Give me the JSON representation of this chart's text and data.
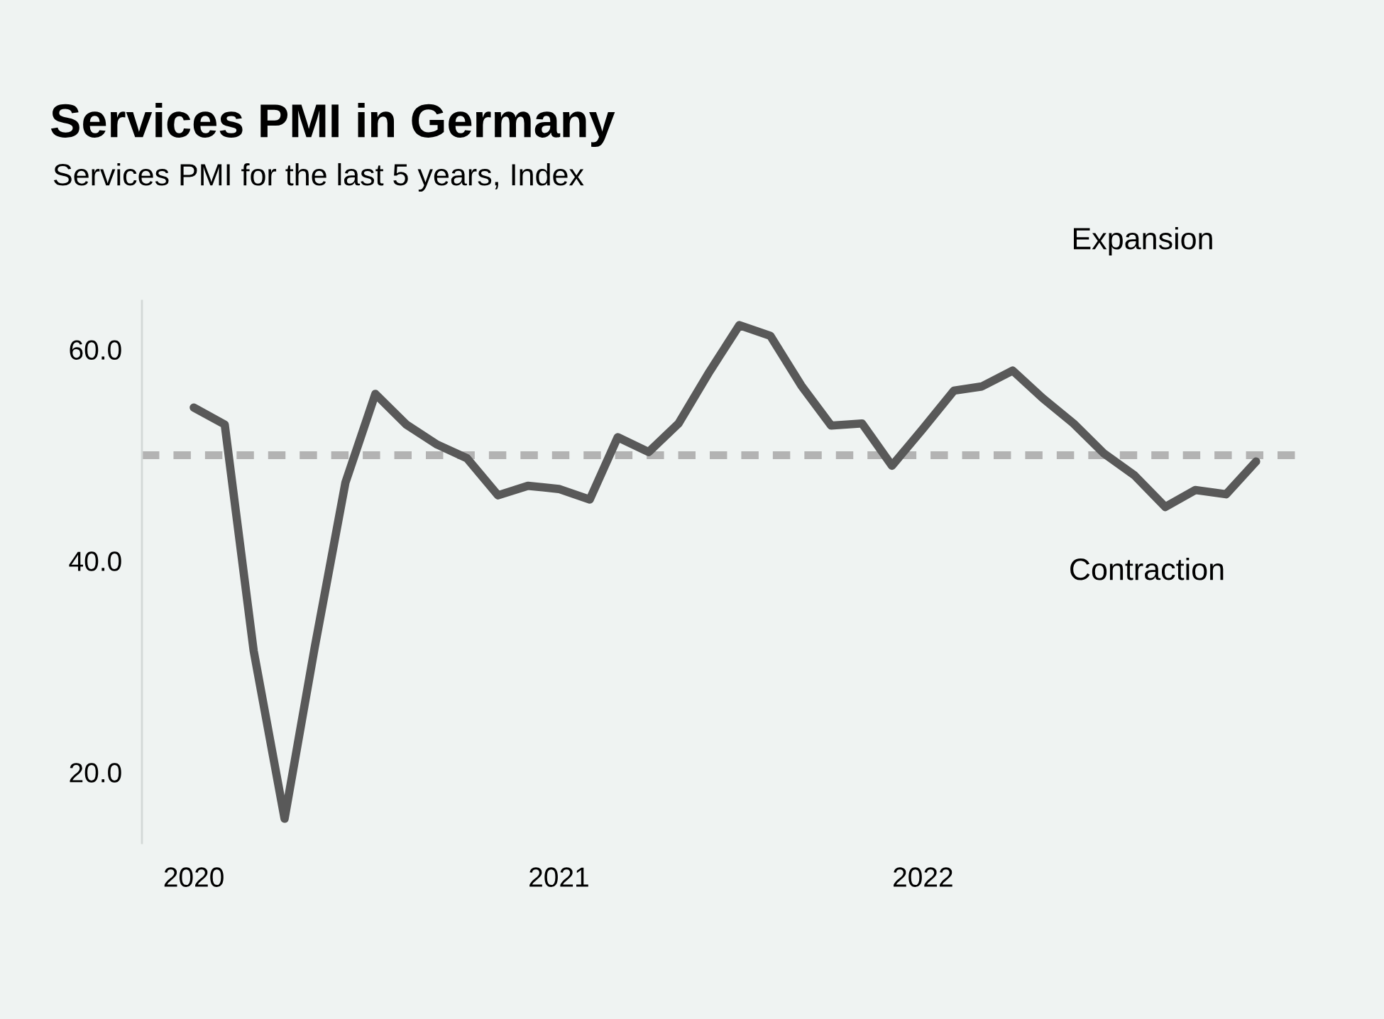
{
  "chart_data": {
    "type": "line",
    "title": "Services PMI in Germany",
    "subtitle": "Services PMI for the last 5 years, Index",
    "x": [
      "2020-01",
      "2020-02",
      "2020-03",
      "2020-04",
      "2020-05",
      "2020-06",
      "2020-07",
      "2020-08",
      "2020-09",
      "2020-10",
      "2020-11",
      "2020-12",
      "2021-01",
      "2021-02",
      "2021-03",
      "2021-04",
      "2021-05",
      "2021-06",
      "2021-07",
      "2021-08",
      "2021-09",
      "2021-10",
      "2021-11",
      "2021-12",
      "2022-01",
      "2022-02",
      "2022-03",
      "2022-04",
      "2022-05",
      "2022-06",
      "2022-07",
      "2022-08",
      "2022-09",
      "2022-10",
      "2022-11",
      "2022-12"
    ],
    "series": [
      {
        "color": "#595959",
        "values": [
          54.5,
          52.9,
          31.5,
          15.6,
          31.7,
          47.4,
          55.8,
          52.9,
          51.0,
          49.7,
          46.2,
          47.1,
          46.8,
          45.8,
          51.7,
          50.3,
          53.0,
          57.9,
          62.3,
          61.3,
          56.6,
          52.8,
          53.0,
          49.0,
          52.5,
          56.1,
          56.5,
          58.0,
          55.4,
          53.0,
          50.2,
          48.1,
          45.1,
          46.7,
          46.3,
          49.4
        ]
      }
    ],
    "xlim": [
      "2019-11-10",
      "2023-01-20"
    ],
    "xticks": [
      {
        "value": "2020-01-01",
        "label": "2020"
      },
      {
        "value": "2021-01-01",
        "label": "2021"
      },
      {
        "value": "2022-01-01",
        "label": "2022"
      }
    ],
    "ylim": [
      13.3,
      64.6
    ],
    "yticks": [
      {
        "value": 20,
        "label": "20.0"
      },
      {
        "value": 40,
        "label": "40.0"
      },
      {
        "value": 60,
        "label": "60.0"
      }
    ],
    "ref_lines": [
      {
        "axis": "y",
        "value": 50,
        "color": "#b3b3b3",
        "line_style": "dashed"
      }
    ],
    "annotations": [
      "Expansion",
      "Contraction"
    ],
    "grid": false,
    "legend": false,
    "marker": "none",
    "line_style": "solid"
  }
}
